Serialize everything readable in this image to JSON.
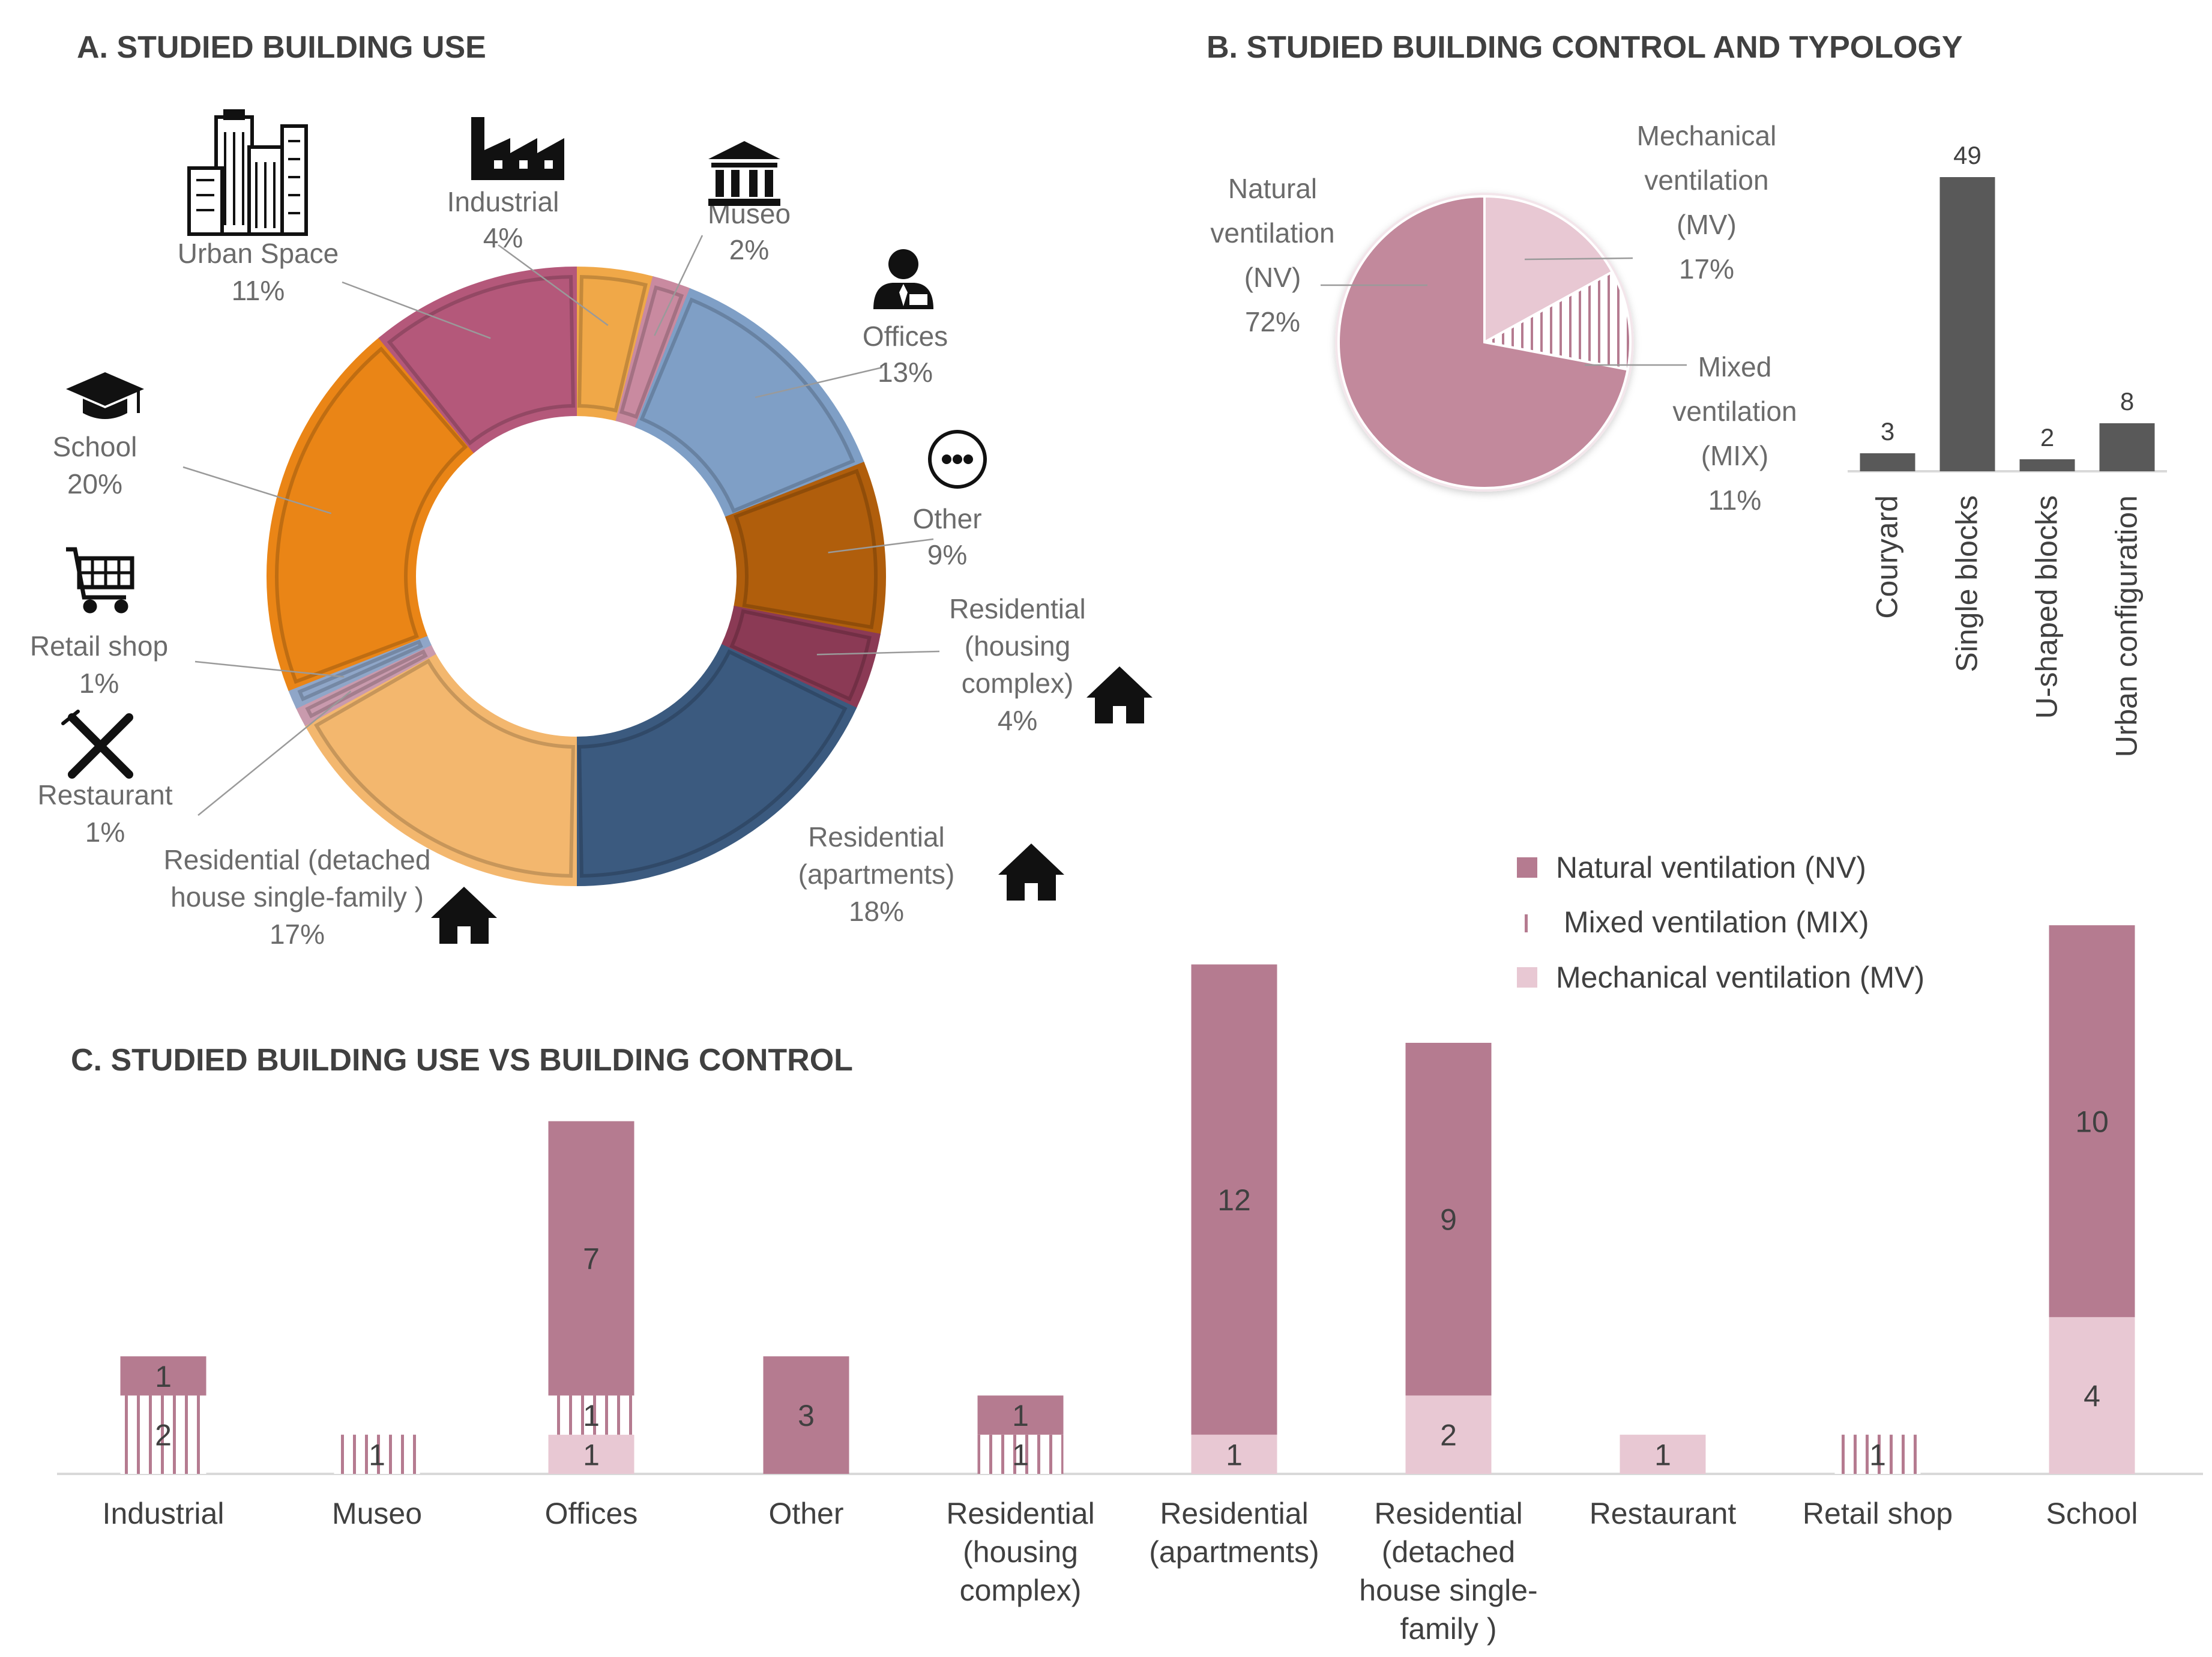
{
  "panels": {
    "a_title": "A. STUDIED BUILDING USE",
    "b_title": "B. STUDIED BUILDING CONTROL AND TYPOLOGY",
    "c_title": "C. STUDIED BUILDING USE VS BUILDING CONTROL"
  },
  "colors": {
    "nv": "#b57b90",
    "mix": "#b57b90",
    "mv": "#e8c8d3",
    "nv_pie": "#c2899c",
    "bar_dark": "#595959"
  },
  "chart_data": [
    {
      "type": "pie",
      "variant": "donut",
      "title": "A. STUDIED BUILDING USE",
      "slices": [
        {
          "key": "industrial",
          "name": "Industrial",
          "value": 4,
          "pct_label": "4%",
          "color": "#f0a848",
          "icon": "factory-icon"
        },
        {
          "key": "museo",
          "name": "Museo",
          "value": 2,
          "pct_label": "2%",
          "color": "#c98aa0",
          "icon": "museum-icon"
        },
        {
          "key": "offices",
          "name": "Offices",
          "value": 13,
          "pct_label": "13%",
          "color": "#7f9fc6",
          "icon": "office-worker-icon"
        },
        {
          "key": "other",
          "name": "Other",
          "value": 9,
          "pct_label": "9%",
          "color": "#b05e0c",
          "icon": "more-icon"
        },
        {
          "key": "res_housing",
          "name": "Residential (housing complex)",
          "lines": [
            "Residential",
            "(housing",
            "complex)"
          ],
          "value": 4,
          "pct_label": "4%",
          "color": "#8b3a55",
          "icon": "house-icon"
        },
        {
          "key": "res_apartments",
          "name": "Residential (apartments)",
          "lines": [
            "Residential",
            "(apartments)"
          ],
          "value": 18,
          "pct_label": "18%",
          "color": "#3b5a7f",
          "icon": "house-icon"
        },
        {
          "key": "res_detached",
          "name": "Residential (detached house single-family )",
          "lines": [
            "Residential (detached",
            "house single-family )"
          ],
          "value": 17,
          "pct_label": "17%",
          "color": "#f3b76e",
          "icon": "house-icon"
        },
        {
          "key": "restaurant",
          "name": "Restaurant",
          "value": 1,
          "pct_label": "1%",
          "color": "#c99aad",
          "icon": "cutlery-icon"
        },
        {
          "key": "retail",
          "name": "Retail shop",
          "value": 1,
          "pct_label": "1%",
          "color": "#8fa6c8",
          "icon": "cart-icon"
        },
        {
          "key": "school",
          "name": "School",
          "value": 20,
          "pct_label": "20%",
          "color": "#ea8516",
          "icon": "graduation-cap-icon"
        },
        {
          "key": "urban",
          "name": "Urban Space",
          "value": 11,
          "pct_label": "11%",
          "color": "#b4587a",
          "icon": "city-icon"
        }
      ]
    },
    {
      "type": "pie",
      "title": "B. STUDIED BUILDING CONTROL AND TYPOLOGY",
      "slices": [
        {
          "key": "mv",
          "lines": [
            "Mechanical",
            "ventilation",
            "(MV)"
          ],
          "value": 17,
          "pct_label": "17%"
        },
        {
          "key": "mix",
          "lines": [
            "Mixed",
            "ventilation",
            "(MIX)"
          ],
          "value": 11,
          "pct_label": "11%"
        },
        {
          "key": "nv",
          "lines": [
            "Natural",
            "ventilation",
            "(NV)"
          ],
          "value": 72,
          "pct_label": "72%"
        }
      ]
    },
    {
      "type": "bar",
      "categories": [
        "Couryard",
        "Single blocks",
        "U-shaped blocks",
        "Urban configuration"
      ],
      "values": [
        3,
        49,
        2,
        8
      ],
      "ylim": [
        0,
        49
      ]
    },
    {
      "type": "bar",
      "stacked": true,
      "title": "C. STUDIED BUILDING USE VS BUILDING CONTROL",
      "categories": [
        {
          "name": "Industrial",
          "lines": [
            "Industrial"
          ]
        },
        {
          "name": "Museo",
          "lines": [
            "Museo"
          ]
        },
        {
          "name": "Offices",
          "lines": [
            "Offices"
          ]
        },
        {
          "name": "Other",
          "lines": [
            "Other"
          ]
        },
        {
          "name": "Residential (housing complex)",
          "lines": [
            "Residential",
            "(housing",
            "complex)"
          ]
        },
        {
          "name": "Residential (apartments)",
          "lines": [
            "Residential",
            "(apartments)"
          ]
        },
        {
          "name": "Residential (detached house single-family )",
          "lines": [
            "Residential",
            "(detached",
            "house single-",
            "family )"
          ]
        },
        {
          "name": "Restaurant",
          "lines": [
            "Restaurant"
          ]
        },
        {
          "name": "Retail shop",
          "lines": [
            "Retail shop"
          ]
        },
        {
          "name": "School",
          "lines": [
            "School"
          ]
        }
      ],
      "series": [
        {
          "key": "mv",
          "name": "Mechanical ventilation (MV)",
          "values": [
            0,
            0,
            1,
            0,
            0,
            1,
            2,
            1,
            0,
            4
          ]
        },
        {
          "key": "mix",
          "name": "Mixed ventilation (MIX)",
          "values": [
            2,
            1,
            1,
            0,
            1,
            0,
            0,
            0,
            1,
            0
          ]
        },
        {
          "key": "nv",
          "name": "Natural ventilation (NV)",
          "values": [
            1,
            0,
            7,
            3,
            1,
            12,
            9,
            0,
            0,
            10
          ]
        }
      ],
      "legend": [
        "Natural ventilation (NV)",
        "Mixed ventilation (MIX)",
        "Mechanical ventilation (MV)"
      ],
      "legend_position": "top-right",
      "ylim": [
        0,
        14
      ]
    }
  ]
}
